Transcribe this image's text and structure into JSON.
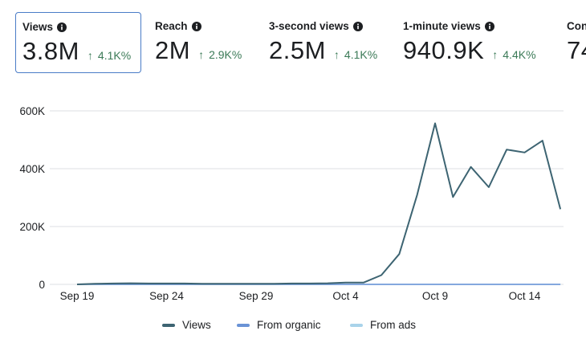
{
  "metrics": [
    {
      "label": "Views",
      "value": "3.8M",
      "change": "4.1K%",
      "selected": true
    },
    {
      "label": "Reach",
      "value": "2M",
      "change": "2.9K%",
      "selected": false
    },
    {
      "label": "3-second views",
      "value": "2.5M",
      "change": "4.1K%",
      "selected": false
    },
    {
      "label": "1-minute views",
      "value": "940.9K",
      "change": "4.4K%",
      "selected": false
    },
    {
      "label": "Con",
      "value": "74",
      "change": "",
      "selected": false
    }
  ],
  "chart_data": {
    "type": "line",
    "x": [
      "Sep 19",
      "Sep 20",
      "Sep 21",
      "Sep 22",
      "Sep 23",
      "Sep 24",
      "Sep 25",
      "Sep 26",
      "Sep 27",
      "Sep 28",
      "Sep 29",
      "Sep 30",
      "Oct 1",
      "Oct 2",
      "Oct 3",
      "Oct 4",
      "Oct 5",
      "Oct 6",
      "Oct 7",
      "Oct 8",
      "Oct 9",
      "Oct 10",
      "Oct 11",
      "Oct 12",
      "Oct 13",
      "Oct 14",
      "Oct 15",
      "Oct 16"
    ],
    "xticks": [
      "Sep 19",
      "Sep 24",
      "Sep 29",
      "Oct 4",
      "Oct 9",
      "Oct 14"
    ],
    "ylim": [
      0,
      600000
    ],
    "yticks": [
      0,
      200000,
      400000,
      600000
    ],
    "ytick_labels": [
      "0",
      "200K",
      "400K",
      "600K"
    ],
    "series": [
      {
        "name": "Views",
        "color": "#3d6472",
        "values": [
          0,
          2000,
          3000,
          4000,
          3000,
          3000,
          3000,
          2000,
          2000,
          2000,
          2000,
          2000,
          3000,
          3000,
          4000,
          6000,
          6000,
          32000,
          105000,
          310000,
          557000,
          302000,
          406000,
          336000,
          466000,
          456000,
          497000,
          260000
        ]
      },
      {
        "name": "From organic",
        "color": "#6a93d6",
        "values": [
          0,
          0,
          0,
          0,
          0,
          0,
          0,
          0,
          0,
          0,
          0,
          0,
          0,
          0,
          0,
          0,
          0,
          0,
          0,
          0,
          0,
          0,
          0,
          0,
          0,
          0,
          0,
          0
        ]
      },
      {
        "name": "From ads",
        "color": "#a9d3ea",
        "values": [
          0,
          0,
          0,
          0,
          0,
          0,
          0,
          0,
          0,
          0,
          0,
          0,
          0,
          0,
          0,
          0,
          0,
          0,
          0,
          0,
          0,
          0,
          0,
          0,
          0,
          0,
          0,
          0
        ]
      }
    ]
  }
}
